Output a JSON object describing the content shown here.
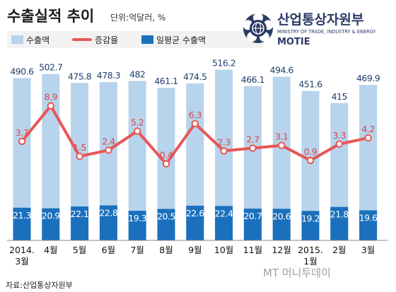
{
  "title": "수출실적 추이",
  "unit": "단위:억달러, %",
  "logo": {
    "name": "산업통상자원부",
    "subtitle": "MINISTRY OF TRADE, INDUSTRY & ENERGY",
    "abbr": "MOTIE"
  },
  "source": "자료:산업통상자원부",
  "watermark": "MT 머니투데이",
  "colors": {
    "export_bar": "#b8d3ec",
    "avg_bar": "#1a70bd",
    "rate_line": "#e85656",
    "bar_label": "#1f3f6e"
  },
  "chart_data": {
    "type": "bar",
    "categories": [
      "2014.\n3월",
      "4월",
      "5월",
      "6월",
      "7월",
      "8월",
      "9월",
      "10월",
      "11월",
      "12월",
      "2015.\n1월",
      "2월",
      "3월"
    ],
    "series": [
      {
        "name": "수출액",
        "type": "bar",
        "values": [
          490.6,
          502.7,
          475.8,
          478.3,
          482,
          461.1,
          474.5,
          516.2,
          466.1,
          494.6,
          451.6,
          415,
          469.9
        ],
        "labels": [
          "490.6",
          "502.7",
          "475.8",
          "478.3",
          "482",
          "461.1",
          "474.5",
          "516.2",
          "466.1",
          "494.6",
          "451.6",
          "415",
          "469.9"
        ]
      },
      {
        "name": "증감율",
        "type": "line",
        "values": [
          3.7,
          8.9,
          1.5,
          2.4,
          5.2,
          0.4,
          6.3,
          2.3,
          2.7,
          3.1,
          0.9,
          3.3,
          4.2
        ],
        "labels": [
          "3.7",
          "8.9",
          "1.5",
          "2.4",
          "5.2",
          "0.4",
          "6.3",
          "2.3",
          "2.7",
          "3.1",
          "0.9",
          "3.3",
          "4.2"
        ]
      },
      {
        "name": "일평균 수출액",
        "type": "bar",
        "values": [
          21.3,
          20.9,
          22.1,
          22.8,
          19.3,
          20.5,
          22.6,
          22.4,
          20.7,
          20.6,
          19.2,
          21.8,
          19.6
        ],
        "labels": [
          "21.3",
          "20.9",
          "22.1",
          "22.8",
          "19.3",
          "20.5",
          "22.6",
          "22.4",
          "20.7",
          "20.6",
          "19.2",
          "21.8",
          "19.6"
        ]
      }
    ]
  }
}
